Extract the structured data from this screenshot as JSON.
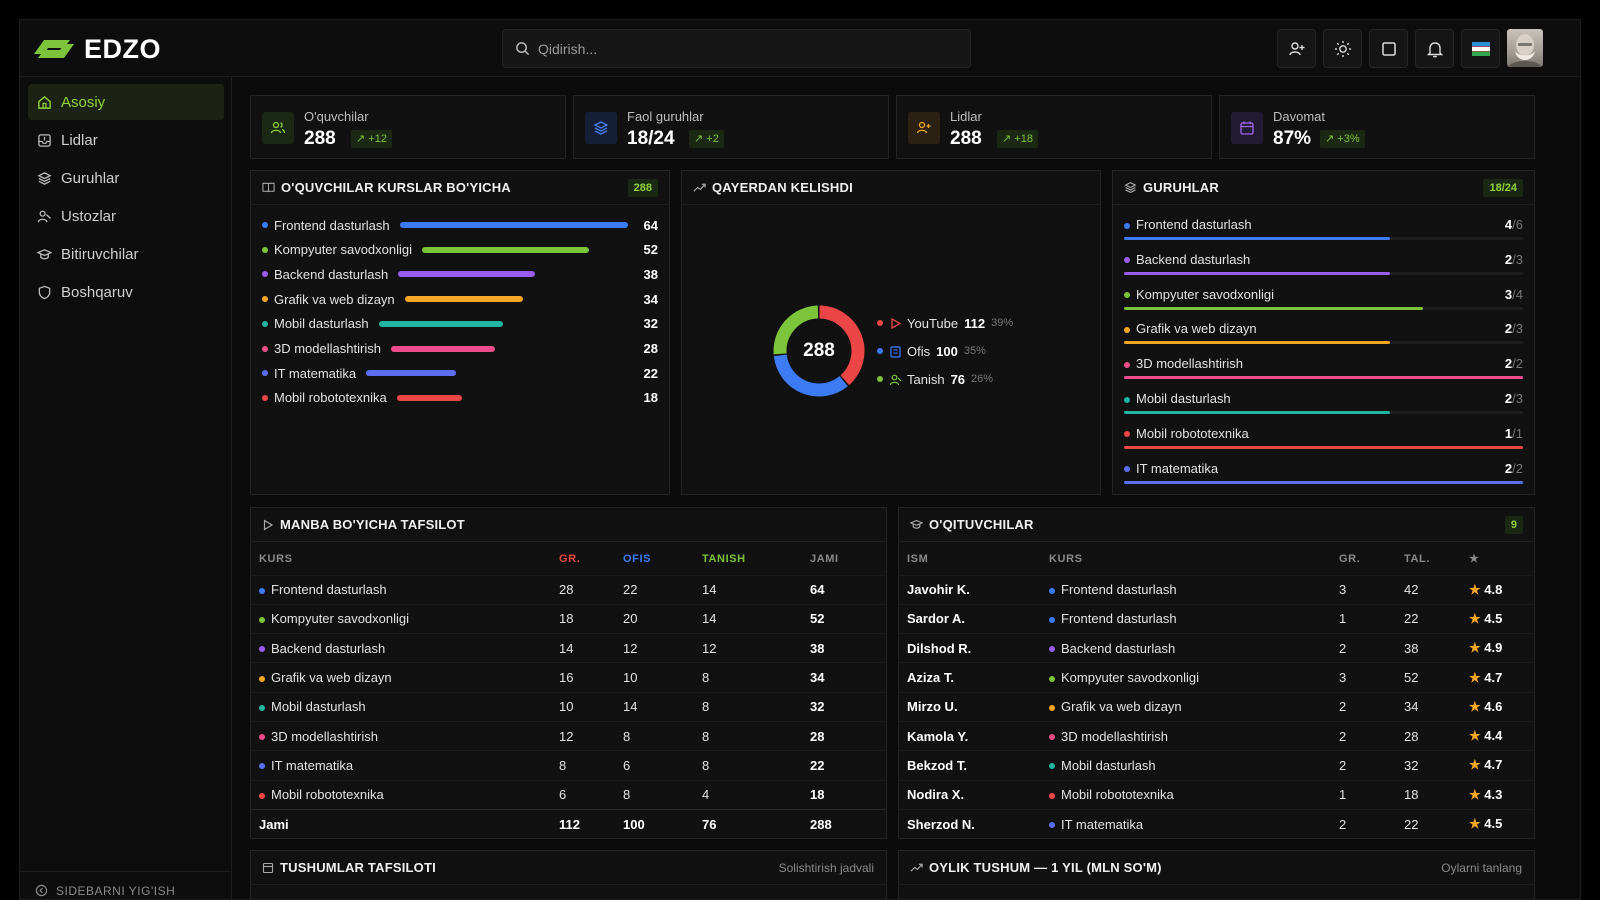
{
  "app": {
    "brand": "EDZO"
  },
  "search": {
    "placeholder": "Qidirish..."
  },
  "sidebar": {
    "items": [
      {
        "label": "Asosiy"
      },
      {
        "label": "Lidlar"
      },
      {
        "label": "Guruhlar"
      },
      {
        "label": "Ustozlar"
      },
      {
        "label": "Bitiruvchilar"
      },
      {
        "label": "Boshqaruv"
      }
    ],
    "footer": "SIDEBARNI YIG'ISH"
  },
  "stats": [
    {
      "label": "O'quvchilar",
      "value": "288",
      "delta": "↗ +12",
      "color": "#8fd33b"
    },
    {
      "label": "Faol guruhlar",
      "value": "18/24",
      "delta": "↗ +2",
      "color": "#4a7bf0"
    },
    {
      "label": "Lidlar",
      "value": "288",
      "delta": "↗ +18",
      "color": "#f5a623"
    },
    {
      "label": "Davomat",
      "value": "87%",
      "delta": "↗ +3%",
      "color": "#a066f0"
    }
  ],
  "courses_card": {
    "title": "O'QUVCHILAR KURSLAR BO'YICHA",
    "badge": "288",
    "rows": [
      {
        "name": "Frontend dasturlash",
        "value": 64,
        "color": "#3d7bf5"
      },
      {
        "name": "Kompyuter savodxonligi",
        "value": 52,
        "color": "#7cc43a"
      },
      {
        "name": "Backend dasturlash",
        "value": 38,
        "color": "#9b5cf0"
      },
      {
        "name": "Grafik va web dizayn",
        "value": 34,
        "color": "#f5a623"
      },
      {
        "name": "Mobil dasturlash",
        "value": 32,
        "color": "#1fb5a0"
      },
      {
        "name": "3D modellashtirish",
        "value": 28,
        "color": "#ec4c8a"
      },
      {
        "name": "IT matematika",
        "value": 22,
        "color": "#5b6ef0"
      },
      {
        "name": "Mobil robototexnika",
        "value": 18,
        "color": "#ec4646"
      }
    ]
  },
  "source_card": {
    "title": "QAYERDAN KELISHDI",
    "total": "288",
    "items": [
      {
        "name": "YouTube",
        "value": 112,
        "percent": "39%",
        "color": "#ec4646",
        "icon": "play-icon"
      },
      {
        "name": "Ofis",
        "value": 100,
        "percent": "35%",
        "color": "#3d7bf5",
        "icon": "building-icon"
      },
      {
        "name": "Tanish",
        "value": 76,
        "percent": "26%",
        "color": "#7cc43a",
        "icon": "user-icon"
      }
    ]
  },
  "groups_card": {
    "title": "GURUHLAR",
    "badge": "18/24",
    "rows": [
      {
        "name": "Frontend dasturlash",
        "active": 4,
        "total": 6,
        "color": "#3d7bf5"
      },
      {
        "name": "Backend dasturlash",
        "active": 2,
        "total": 3,
        "color": "#9b5cf0"
      },
      {
        "name": "Kompyuter savodxonligi",
        "active": 3,
        "total": 4,
        "color": "#7cc43a"
      },
      {
        "name": "Grafik va web dizayn",
        "active": 2,
        "total": 3,
        "color": "#f5a623"
      },
      {
        "name": "3D modellashtirish",
        "active": 2,
        "total": 2,
        "color": "#ec4c8a"
      },
      {
        "name": "Mobil dasturlash",
        "active": 2,
        "total": 3,
        "color": "#1fb5a0"
      },
      {
        "name": "Mobil robototexnika",
        "active": 1,
        "total": 1,
        "color": "#ec4646"
      },
      {
        "name": "IT matematika",
        "active": 2,
        "total": 2,
        "color": "#5b6ef0"
      }
    ]
  },
  "source_table": {
    "title": "MANBA BO'YICHA TAFSILOT",
    "headers": [
      "KURS",
      "GR.",
      "OFIS",
      "TANISH",
      "JAMI"
    ],
    "header_colors": [
      "#8a8a8a",
      "#ec4646",
      "#3d7bf5",
      "#7cc43a",
      "#8a8a8a"
    ],
    "rows": [
      {
        "kurs": "Frontend dasturlash",
        "color": "#3d7bf5",
        "gr": "28",
        "ofis": "22",
        "tanish": "14",
        "jami": "64"
      },
      {
        "kurs": "Kompyuter savodxonligi",
        "color": "#7cc43a",
        "gr": "18",
        "ofis": "20",
        "tanish": "14",
        "jami": "52"
      },
      {
        "kurs": "Backend dasturlash",
        "color": "#9b5cf0",
        "gr": "14",
        "ofis": "12",
        "tanish": "12",
        "jami": "38"
      },
      {
        "kurs": "Grafik va web dizayn",
        "color": "#f5a623",
        "gr": "16",
        "ofis": "10",
        "tanish": "8",
        "jami": "34"
      },
      {
        "kurs": "Mobil dasturlash",
        "color": "#1fb5a0",
        "gr": "10",
        "ofis": "14",
        "tanish": "8",
        "jami": "32"
      },
      {
        "kurs": "3D modellashtirish",
        "color": "#ec4c8a",
        "gr": "12",
        "ofis": "8",
        "tanish": "8",
        "jami": "28"
      },
      {
        "kurs": "IT matematika",
        "color": "#5b6ef0",
        "gr": "8",
        "ofis": "6",
        "tanish": "8",
        "jami": "22"
      },
      {
        "kurs": "Mobil robototexnika",
        "color": "#ec4646",
        "gr": "6",
        "ofis": "8",
        "tanish": "4",
        "jami": "18"
      }
    ],
    "total": {
      "label": "Jami",
      "gr": "112",
      "ofis": "100",
      "tanish": "76",
      "jami": "288"
    }
  },
  "teachers_table": {
    "title": "O'QITUVCHILAR",
    "badge": "9",
    "headers": [
      "ISM",
      "KURS",
      "GR.",
      "TAL.",
      "★"
    ],
    "rows": [
      {
        "ism": "Javohir K.",
        "kurs": "Frontend dasturlash",
        "color": "#3d7bf5",
        "gr": "3",
        "tal": "42",
        "rating": "4.8"
      },
      {
        "ism": "Sardor A.",
        "kurs": "Frontend dasturlash",
        "color": "#3d7bf5",
        "gr": "1",
        "tal": "22",
        "rating": "4.5"
      },
      {
        "ism": "Dilshod R.",
        "kurs": "Backend dasturlash",
        "color": "#9b5cf0",
        "gr": "2",
        "tal": "38",
        "rating": "4.9"
      },
      {
        "ism": "Aziza T.",
        "kurs": "Kompyuter savodxonligi",
        "color": "#7cc43a",
        "gr": "3",
        "tal": "52",
        "rating": "4.7"
      },
      {
        "ism": "Mirzo U.",
        "kurs": "Grafik va web dizayn",
        "color": "#f5a623",
        "gr": "2",
        "tal": "34",
        "rating": "4.6"
      },
      {
        "ism": "Kamola Y.",
        "kurs": "3D modellashtirish",
        "color": "#ec4c8a",
        "gr": "2",
        "tal": "28",
        "rating": "4.4"
      },
      {
        "ism": "Bekzod T.",
        "kurs": "Mobil dasturlash",
        "color": "#1fb5a0",
        "gr": "2",
        "tal": "32",
        "rating": "4.7"
      },
      {
        "ism": "Nodira X.",
        "kurs": "Mobil robototexnika",
        "color": "#ec4646",
        "gr": "1",
        "tal": "18",
        "rating": "4.3"
      },
      {
        "ism": "Sherzod N.",
        "kurs": "IT matematika",
        "color": "#5b6ef0",
        "gr": "2",
        "tal": "22",
        "rating": "4.5"
      }
    ]
  },
  "income_card": {
    "title": "TUSHUMLAR TAFSILOTI",
    "link": "Solishtirish jadvali"
  },
  "monthly_card": {
    "title": "OYLIK TUSHUM — 1 YIL (MLN SO'M)",
    "link": "Oylarni tanlang"
  },
  "colors": {
    "accent": "#8fd33b",
    "background": "#0b0b0b",
    "card": "#111111"
  }
}
